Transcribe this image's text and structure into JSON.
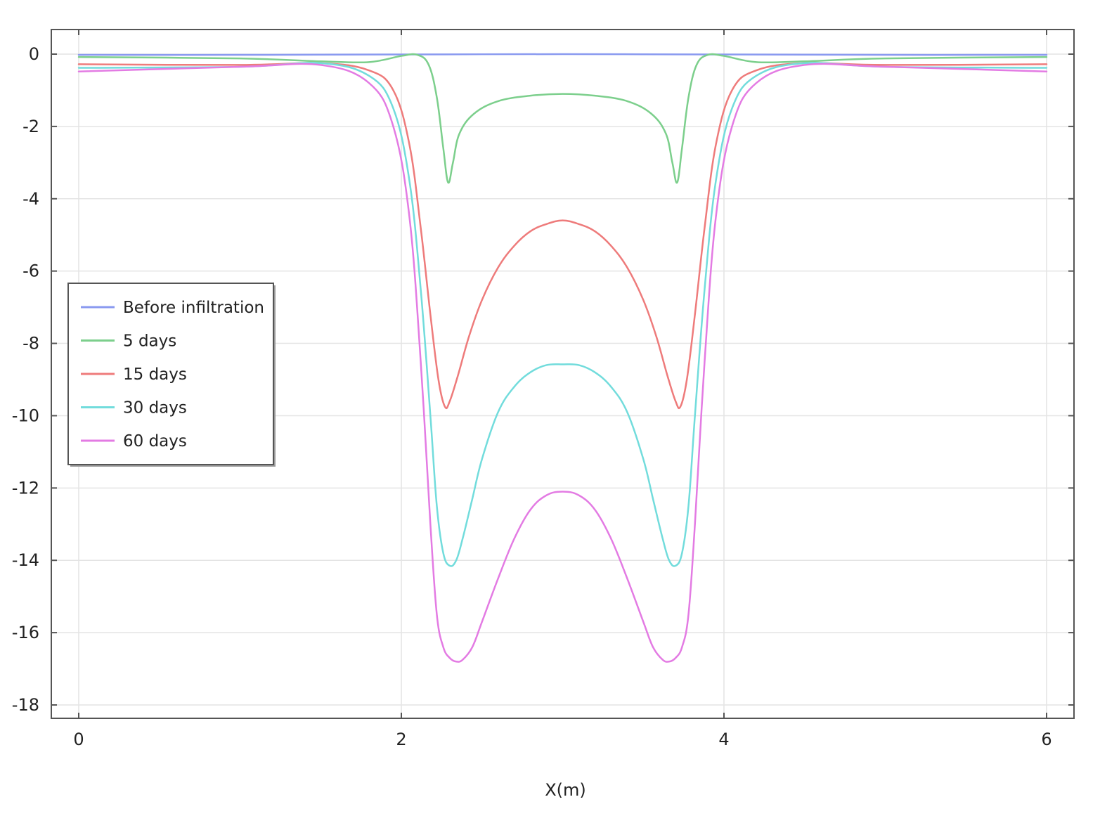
{
  "chart_data": {
    "type": "line",
    "title": "",
    "xlabel": "X(m)",
    "ylabel": "",
    "xlim": [
      0,
      6
    ],
    "ylim": [
      -18,
      0
    ],
    "grid": true,
    "legend_position": "left",
    "xticks": [
      0,
      2,
      4,
      6
    ],
    "yticks": [
      0,
      -2,
      -4,
      -6,
      -8,
      -10,
      -12,
      -14,
      -16,
      -18
    ],
    "series": [
      {
        "name": "Before infiltration",
        "color": "#8a9af0",
        "x": [
          0,
          1,
          2,
          3,
          4,
          5,
          6
        ],
        "y": [
          -0.02,
          -0.02,
          -0.01,
          0,
          -0.01,
          -0.02,
          -0.02
        ]
      },
      {
        "name": "5 days",
        "color": "#7ccf8c",
        "x": [
          0,
          1.0,
          1.5,
          1.8,
          2.0,
          2.1,
          2.17,
          2.22,
          2.26,
          2.29,
          2.32,
          2.36,
          2.45,
          2.6,
          2.8,
          3.0,
          3.2,
          3.4,
          3.55,
          3.64,
          3.68,
          3.71,
          3.74,
          3.78,
          3.83,
          3.9,
          4.0,
          4.2,
          4.5,
          5.0,
          6.0
        ],
        "y": [
          -0.08,
          -0.12,
          -0.2,
          -0.22,
          -0.05,
          -0.02,
          -0.3,
          -1.2,
          -2.6,
          -3.55,
          -3.0,
          -2.2,
          -1.65,
          -1.3,
          -1.15,
          -1.1,
          -1.15,
          -1.3,
          -1.65,
          -2.2,
          -3.0,
          -3.55,
          -2.6,
          -1.2,
          -0.3,
          -0.02,
          -0.05,
          -0.22,
          -0.2,
          -0.12,
          -0.08
        ]
      },
      {
        "name": "15 days",
        "color": "#ee7b7b",
        "x": [
          0,
          1.0,
          1.5,
          1.8,
          1.95,
          2.05,
          2.12,
          2.18,
          2.23,
          2.27,
          2.3,
          2.35,
          2.42,
          2.5,
          2.6,
          2.7,
          2.8,
          2.9,
          3.0,
          3.1,
          3.2,
          3.3,
          3.4,
          3.5,
          3.58,
          3.65,
          3.7,
          3.73,
          3.77,
          3.82,
          3.88,
          3.95,
          4.05,
          4.2,
          4.5,
          5.0,
          6.0
        ],
        "y": [
          -0.28,
          -0.3,
          -0.25,
          -0.45,
          -1.0,
          -2.5,
          -4.8,
          -7.2,
          -9.0,
          -9.75,
          -9.6,
          -8.9,
          -7.8,
          -6.8,
          -5.9,
          -5.3,
          -4.9,
          -4.7,
          -4.6,
          -4.7,
          -4.9,
          -5.3,
          -5.9,
          -6.8,
          -7.8,
          -8.9,
          -9.6,
          -9.75,
          -9.0,
          -7.2,
          -4.8,
          -2.5,
          -1.0,
          -0.45,
          -0.25,
          -0.3,
          -0.28
        ]
      },
      {
        "name": "30 days",
        "color": "#72dcdc",
        "x": [
          0,
          1.0,
          1.5,
          1.8,
          1.95,
          2.05,
          2.12,
          2.18,
          2.22,
          2.26,
          2.3,
          2.34,
          2.38,
          2.44,
          2.5,
          2.6,
          2.7,
          2.8,
          2.9,
          3.0,
          3.1,
          3.2,
          3.3,
          3.4,
          3.5,
          3.56,
          3.62,
          3.66,
          3.7,
          3.74,
          3.78,
          3.82,
          3.88,
          3.95,
          4.05,
          4.2,
          4.5,
          5.0,
          6.0
        ],
        "y": [
          -0.38,
          -0.35,
          -0.25,
          -0.6,
          -1.5,
          -3.5,
          -6.5,
          -10.0,
          -12.5,
          -13.8,
          -14.15,
          -14.0,
          -13.4,
          -12.3,
          -11.2,
          -9.9,
          -9.2,
          -8.8,
          -8.6,
          -8.58,
          -8.6,
          -8.8,
          -9.2,
          -9.9,
          -11.2,
          -12.3,
          -13.4,
          -14.0,
          -14.15,
          -13.8,
          -12.5,
          -10.0,
          -6.5,
          -3.5,
          -1.5,
          -0.6,
          -0.25,
          -0.35,
          -0.38
        ]
      },
      {
        "name": "60 days",
        "color": "#e37be3",
        "x": [
          0,
          1.0,
          1.5,
          1.8,
          1.95,
          2.05,
          2.12,
          2.18,
          2.22,
          2.26,
          2.3,
          2.34,
          2.38,
          2.44,
          2.5,
          2.6,
          2.7,
          2.8,
          2.9,
          3.0,
          3.1,
          3.2,
          3.3,
          3.4,
          3.5,
          3.56,
          3.62,
          3.66,
          3.7,
          3.74,
          3.78,
          3.82,
          3.88,
          3.95,
          4.05,
          4.2,
          4.5,
          5.0,
          6.0
        ],
        "y": [
          -0.48,
          -0.35,
          -0.3,
          -0.8,
          -2.0,
          -4.5,
          -8.5,
          -13.0,
          -15.5,
          -16.4,
          -16.7,
          -16.8,
          -16.75,
          -16.4,
          -15.7,
          -14.5,
          -13.4,
          -12.6,
          -12.2,
          -12.1,
          -12.2,
          -12.6,
          -13.4,
          -14.5,
          -15.7,
          -16.4,
          -16.75,
          -16.8,
          -16.7,
          -16.4,
          -15.5,
          -13.0,
          -8.5,
          -4.5,
          -2.0,
          -0.8,
          -0.3,
          -0.35,
          -0.48
        ]
      }
    ]
  }
}
